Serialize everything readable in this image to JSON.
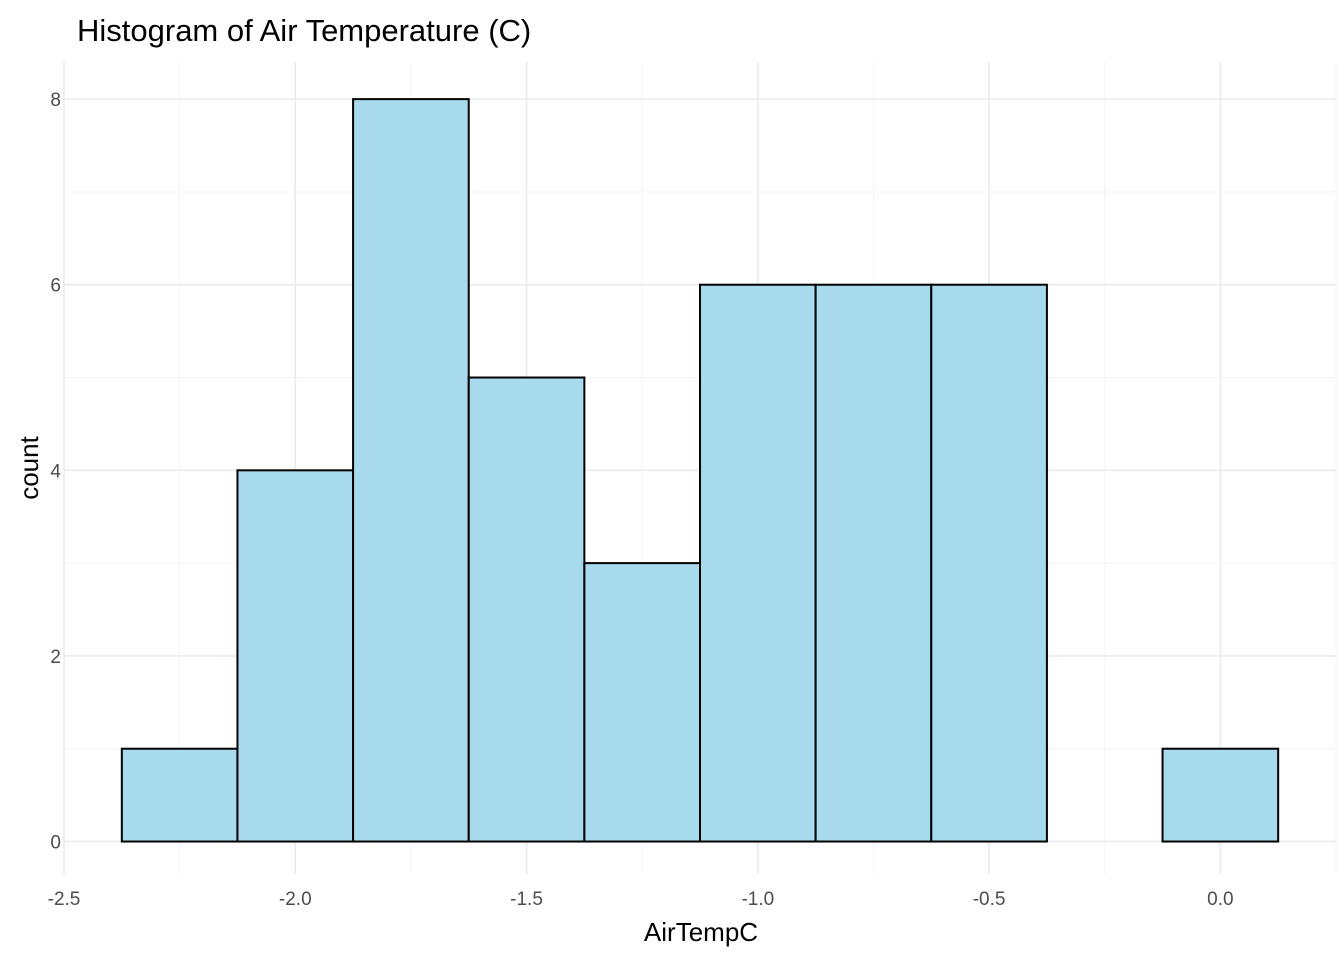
{
  "chart_data": {
    "type": "bar",
    "title": "Histogram of Air Temperature (C)",
    "xlabel": "AirTempC",
    "ylabel": "count",
    "bins": [
      {
        "x_start": -2.375,
        "x_end": -2.125,
        "count": 1
      },
      {
        "x_start": -2.125,
        "x_end": -1.875,
        "count": 4
      },
      {
        "x_start": -1.875,
        "x_end": -1.625,
        "count": 8
      },
      {
        "x_start": -1.625,
        "x_end": -1.375,
        "count": 5
      },
      {
        "x_start": -1.375,
        "x_end": -1.125,
        "count": 3
      },
      {
        "x_start": -1.125,
        "x_end": -0.875,
        "count": 6
      },
      {
        "x_start": -0.875,
        "x_end": -0.625,
        "count": 6
      },
      {
        "x_start": -0.625,
        "x_end": -0.375,
        "count": 6
      },
      {
        "x_start": -0.375,
        "x_end": -0.125,
        "count": 0
      },
      {
        "x_start": -0.125,
        "x_end": 0.125,
        "count": 1
      }
    ],
    "xlim": [
      -2.5,
      0.25
    ],
    "ylim": [
      -0.35,
      8.4
    ],
    "x_ticks": [
      -2.5,
      -2.0,
      -1.5,
      -1.0,
      -0.5,
      0.0
    ],
    "x_tick_labels": [
      "-2.5",
      "-2.0",
      "-1.5",
      "-1.0",
      "-0.5",
      "0.0"
    ],
    "y_ticks": [
      0,
      2,
      4,
      6,
      8
    ],
    "y_tick_labels": [
      "0",
      "2",
      "4",
      "6",
      "8"
    ],
    "grid": true,
    "fill_color": "#a8daee",
    "edge_color": "#000000"
  }
}
